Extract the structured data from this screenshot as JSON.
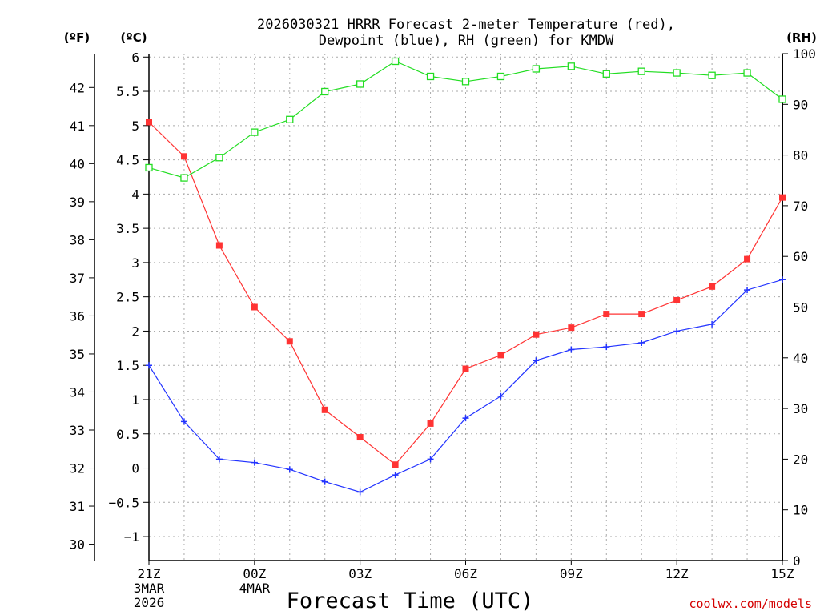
{
  "chart_data": {
    "type": "line",
    "title_line1": "2026030321 HRRR Forecast 2-meter Temperature (red),",
    "title_line2": "Dewpoint (blue), RH (green) for KMDW",
    "xlabel": "Forecast Time (UTC)",
    "credit": "coolwx.com/models",
    "unit_f": "(ºF)",
    "unit_c": "(ºC)",
    "unit_rh": "(RH)",
    "forecast_hours": [
      0,
      1,
      2,
      3,
      4,
      5,
      6,
      7,
      8,
      9,
      10,
      11,
      12,
      13,
      14,
      15,
      16,
      17,
      18
    ],
    "x_range": [
      0,
      18
    ],
    "x_ticks": [
      {
        "hour": 0,
        "label": "21Z",
        "date1": "3MAR",
        "date2": "2026"
      },
      {
        "hour": 3,
        "label": "00Z",
        "date1": "4MAR",
        "date2": ""
      },
      {
        "hour": 6,
        "label": "03Z",
        "date1": "",
        "date2": ""
      },
      {
        "hour": 9,
        "label": "06Z",
        "date1": "",
        "date2": ""
      },
      {
        "hour": 12,
        "label": "09Z",
        "date1": "",
        "date2": ""
      },
      {
        "hour": 15,
        "label": "12Z",
        "date1": "",
        "date2": ""
      },
      {
        "hour": 18,
        "label": "15Z",
        "date1": "",
        "date2": ""
      }
    ],
    "celsius_axis": {
      "range": [
        -1.35,
        6.05
      ],
      "ticks": [
        -1,
        -0.5,
        0,
        0.5,
        1,
        1.5,
        2,
        2.5,
        3,
        3.5,
        4,
        4.5,
        5,
        5.5,
        6
      ],
      "tick_labels": [
        "−1",
        "−0.5",
        "0",
        "0.5",
        "1",
        "1.5",
        "2",
        "2.5",
        "3",
        "3.5",
        "4",
        "4.5",
        "5",
        "5.5",
        "6"
      ]
    },
    "fahrenheit_axis": {
      "ticks": [
        30,
        31,
        32,
        33,
        34,
        35,
        36,
        37,
        38,
        39,
        40,
        41,
        42
      ]
    },
    "rh_axis": {
      "range": [
        0,
        100
      ],
      "ticks": [
        0,
        10,
        20,
        30,
        40,
        50,
        60,
        70,
        80,
        90,
        100
      ]
    },
    "series": [
      {
        "name": "Temperature",
        "axis": "celsius",
        "color": "#ff3333",
        "marker": "filled-square",
        "values": [
          5.05,
          4.55,
          3.25,
          2.35,
          1.85,
          0.85,
          0.45,
          0.05,
          0.65,
          1.45,
          1.65,
          1.95,
          2.05,
          2.25,
          2.25,
          2.45,
          2.65,
          3.05,
          3.95
        ]
      },
      {
        "name": "Dewpoint",
        "axis": "celsius",
        "color": "#2233ff",
        "marker": "plus",
        "values": [
          1.5,
          0.68,
          0.13,
          0.08,
          -0.02,
          -0.2,
          -0.35,
          -0.1,
          0.13,
          0.73,
          1.05,
          1.57,
          1.73,
          1.77,
          1.83,
          2.0,
          2.1,
          2.6,
          2.75
        ]
      },
      {
        "name": "RH",
        "axis": "rh",
        "color": "#22dd22",
        "marker": "open-square",
        "values": [
          77.5,
          75.5,
          79.5,
          84.5,
          87,
          92.5,
          94,
          98.5,
          95.5,
          94.5,
          95.5,
          97,
          97.5,
          96,
          96.5,
          96.2,
          95.7,
          96.2,
          91
        ]
      }
    ]
  }
}
